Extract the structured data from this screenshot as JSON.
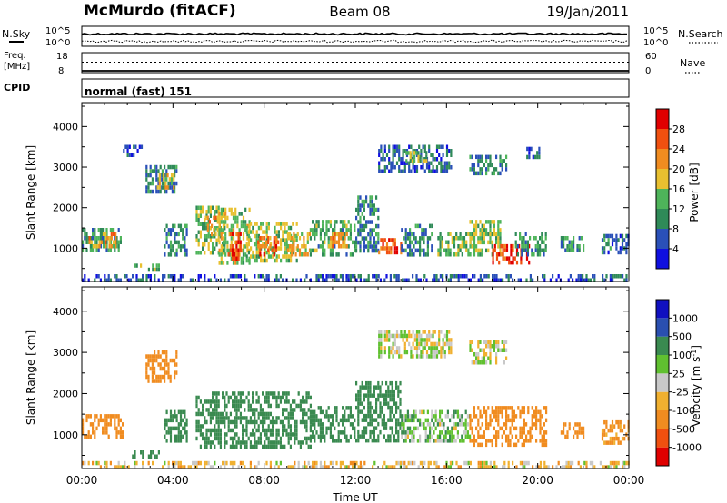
{
  "header": {
    "station": "McMurdo (fitACF)",
    "beam": "Beam 08",
    "date": "19/Jan/2011"
  },
  "noise_panel": {
    "left_label": "N.Sky",
    "right_label": "N.Search",
    "left_ticks": [
      "10^5",
      "10^0"
    ],
    "right_ticks": [
      "10^5",
      "10^0"
    ],
    "sky_level": 0.62,
    "search_level": 0.25
  },
  "freq_panel": {
    "left_label_line1": "Freq.",
    "left_label_line2": "[MHz]",
    "right_label": "Nave",
    "left_ticks": [
      "18",
      "8"
    ],
    "right_ticks": [
      "60",
      "0"
    ],
    "freq_level": 0.0,
    "nave_level": 0.52
  },
  "cpid_panel": {
    "label": "CPID",
    "program": "normal (fast) 151"
  },
  "colors": {
    "power": [
      "#1010e0",
      "#2a50b8",
      "#2f8a58",
      "#4eb45a",
      "#e8c030",
      "#f08c20",
      "#f05010",
      "#e00000"
    ],
    "velocity": [
      "#e00000",
      "#f05010",
      "#f08c20",
      "#f0b030",
      "#c8c8c8",
      "#60c030",
      "#3a8a50",
      "#2a4fb0",
      "#1010c0"
    ],
    "axis": "#000000"
  },
  "chart_data": [
    {
      "type": "heatmap",
      "name": "power",
      "xlabel": "",
      "ylabel": "Slant Range [km]",
      "ylim": [
        180,
        4590
      ],
      "yticks": [
        "1000",
        "2000",
        "3000",
        "4000"
      ],
      "xlim": [
        0,
        24
      ],
      "colorbar": {
        "label": "Power [dB]",
        "ticks": [
          "4",
          "8",
          "12",
          "16",
          "20",
          "24",
          "28"
        ],
        "range": [
          0,
          32
        ]
      },
      "echo_regions": [
        {
          "t": [
            0.0,
            1.7
          ],
          "r": [
            930,
            1500
          ],
          "v": 11
        },
        {
          "t": [
            0.3,
            1.5
          ],
          "r": [
            1050,
            1400
          ],
          "v": 20
        },
        {
          "t": [
            2.2,
            3.4
          ],
          "r": [
            430,
            620
          ],
          "v": 13
        },
        {
          "t": [
            2.8,
            4.2
          ],
          "r": [
            2350,
            3050
          ],
          "v": 9
        },
        {
          "t": [
            3.2,
            4.0
          ],
          "r": [
            2500,
            2850
          ],
          "v": 18
        },
        {
          "t": [
            1.8,
            2.6
          ],
          "r": [
            3250,
            3550
          ],
          "v": 6
        },
        {
          "t": [
            3.6,
            4.6
          ],
          "r": [
            850,
            1600
          ],
          "v": 10
        },
        {
          "t": [
            5.0,
            6.3
          ],
          "r": [
            850,
            2050
          ],
          "v": 14
        },
        {
          "t": [
            5.4,
            6.1
          ],
          "r": [
            1300,
            1800
          ],
          "v": 22
        },
        {
          "t": [
            6.0,
            7.4
          ],
          "r": [
            650,
            2000
          ],
          "v": 16
        },
        {
          "t": [
            6.4,
            7.0
          ],
          "r": [
            700,
            1400
          ],
          "v": 27
        },
        {
          "t": [
            7.2,
            9.4
          ],
          "r": [
            700,
            1650
          ],
          "v": 15
        },
        {
          "t": [
            7.7,
            8.6
          ],
          "r": [
            800,
            1300
          ],
          "v": 24
        },
        {
          "t": [
            9.0,
            10.0
          ],
          "r": [
            800,
            1400
          ],
          "v": 19
        },
        {
          "t": [
            10.0,
            12.0
          ],
          "r": [
            850,
            1700
          ],
          "v": 12
        },
        {
          "t": [
            10.8,
            11.6
          ],
          "r": [
            1000,
            1400
          ],
          "v": 21
        },
        {
          "t": [
            12.0,
            13.0
          ],
          "r": [
            900,
            2300
          ],
          "v": 9
        },
        {
          "t": [
            13.0,
            14.0
          ],
          "r": [
            850,
            1250
          ],
          "v": 26
        },
        {
          "t": [
            14.0,
            15.4
          ],
          "r": [
            850,
            1600
          ],
          "v": 9
        },
        {
          "t": [
            15.6,
            17.2
          ],
          "r": [
            850,
            1400
          ],
          "v": 13
        },
        {
          "t": [
            17.0,
            18.4
          ],
          "r": [
            850,
            1700
          ],
          "v": 15
        },
        {
          "t": [
            18.0,
            19.6
          ],
          "r": [
            650,
            1100
          ],
          "v": 28
        },
        {
          "t": [
            19.0,
            20.4
          ],
          "r": [
            850,
            1400
          ],
          "v": 11
        },
        {
          "t": [
            21.0,
            22.0
          ],
          "r": [
            950,
            1300
          ],
          "v": 10
        },
        {
          "t": [
            22.8,
            24.0
          ],
          "r": [
            850,
            1350
          ],
          "v": 8
        },
        {
          "t": [
            13.0,
            16.2
          ],
          "r": [
            2900,
            3550
          ],
          "v": 7
        },
        {
          "t": [
            14.2,
            15.2
          ],
          "r": [
            3100,
            3400
          ],
          "v": 14
        },
        {
          "t": [
            17.0,
            18.6
          ],
          "r": [
            2800,
            3300
          ],
          "v": 9
        },
        {
          "t": [
            19.5,
            20.2
          ],
          "r": [
            3200,
            3500
          ],
          "v": 6
        },
        {
          "t": [
            0.0,
            24.0
          ],
          "r": [
            180,
            360
          ],
          "v": 6
        }
      ]
    },
    {
      "type": "heatmap",
      "name": "velocity",
      "xlabel": "Time UT",
      "ylabel": "Slant Range [km]",
      "ylim": [
        180,
        4590
      ],
      "yticks": [
        "1000",
        "2000",
        "3000",
        "4000"
      ],
      "xlim": [
        0,
        24
      ],
      "xticks": [
        "00:00",
        "04:00",
        "08:00",
        "12:00",
        "16:00",
        "20:00",
        "00:00"
      ],
      "colorbar": {
        "label": "Velocity [m s",
        "label_sup": "-1",
        "label_end": "]",
        "ticks": [
          "1000",
          "500",
          "100",
          "25",
          "-25",
          "-100",
          "-500",
          "-1000"
        ]
      },
      "echo_regions": [
        {
          "t": [
            0.0,
            1.8
          ],
          "r": [
            930,
            1500
          ],
          "v": -300
        },
        {
          "t": [
            2.2,
            3.4
          ],
          "r": [
            430,
            620
          ],
          "v": 300
        },
        {
          "t": [
            2.8,
            4.2
          ],
          "r": [
            2350,
            3050
          ],
          "v": -200
        },
        {
          "t": [
            3.6,
            4.6
          ],
          "r": [
            850,
            1600
          ],
          "v": 300
        },
        {
          "t": [
            5.0,
            10.0
          ],
          "r": [
            700,
            2050
          ],
          "v": 250
        },
        {
          "t": [
            10.0,
            12.0
          ],
          "r": [
            850,
            1700
          ],
          "v": 250
        },
        {
          "t": [
            12.0,
            14.0
          ],
          "r": [
            850,
            2300
          ],
          "v": 200
        },
        {
          "t": [
            14.0,
            17.0
          ],
          "r": [
            850,
            1600
          ],
          "v": 60
        },
        {
          "t": [
            17.0,
            20.4
          ],
          "r": [
            800,
            1700
          ],
          "v": -300
        },
        {
          "t": [
            21.0,
            22.0
          ],
          "r": [
            950,
            1300
          ],
          "v": -200
        },
        {
          "t": [
            22.8,
            24.0
          ],
          "r": [
            850,
            1350
          ],
          "v": -150
        },
        {
          "t": [
            13.0,
            16.2
          ],
          "r": [
            2900,
            3550
          ],
          "v": 0
        },
        {
          "t": [
            17.0,
            18.6
          ],
          "r": [
            2800,
            3300
          ],
          "v": 0
        },
        {
          "t": [
            0.0,
            24.0
          ],
          "r": [
            180,
            360
          ],
          "v": -50
        }
      ]
    }
  ]
}
